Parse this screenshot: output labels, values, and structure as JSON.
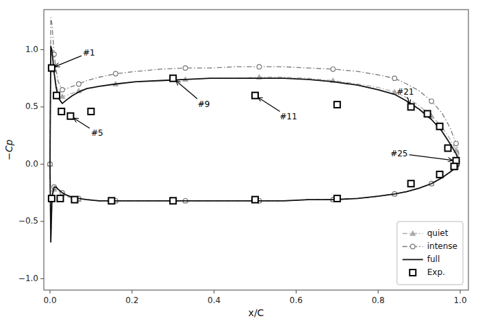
{
  "chart_data": {
    "type": "line",
    "xlabel": "x/C",
    "ylabel": "−Cp",
    "xlim": [
      -0.015,
      1.02
    ],
    "ylim": [
      -1.1,
      1.35
    ],
    "xticks": [
      {
        "value": 0,
        "label": "0.0"
      },
      0.2,
      0.4,
      0.6,
      0.8,
      {
        "value": 1,
        "label": "1.0"
      }
    ],
    "yticks": [
      {
        "value": -1,
        "label": "−1.0"
      },
      {
        "value": -0.5,
        "label": "−0.5"
      },
      {
        "value": 0,
        "label": "0.0"
      },
      0.5,
      {
        "value": 1,
        "label": "1.0"
      }
    ],
    "grid": false,
    "legend": "lower right",
    "series": [
      {
        "name": "quiet",
        "type": "line",
        "color": "#aaaaaa",
        "marker": "triangle",
        "line_style": "dashdot",
        "x": [
          0.0,
          0.002,
          0.005,
          0.01,
          0.015,
          0.02,
          0.03,
          0.04,
          0.055,
          0.07,
          0.09,
          0.12,
          0.16,
          0.21,
          0.27,
          0.33,
          0.39,
          0.45,
          0.51,
          0.57,
          0.63,
          0.69,
          0.75,
          0.8,
          0.84,
          0.87,
          0.9,
          0.93,
          0.955,
          0.975,
          0.99,
          0.998
        ],
        "values": [
          0.0,
          1.03,
          1.0,
          0.82,
          0.7,
          0.63,
          0.59,
          0.6,
          0.62,
          0.64,
          0.66,
          0.68,
          0.7,
          0.72,
          0.73,
          0.74,
          0.75,
          0.75,
          0.76,
          0.76,
          0.75,
          0.73,
          0.7,
          0.67,
          0.63,
          0.58,
          0.51,
          0.42,
          0.33,
          0.22,
          0.12,
          0.05
        ]
      },
      {
        "name": "quiet",
        "type": "line",
        "color": "#aaaaaa",
        "marker": "triangle",
        "line_style": "dashdot",
        "x": [
          0.0,
          0.002,
          0.005,
          0.01,
          0.015,
          0.02,
          0.03,
          0.04,
          0.055,
          0.07,
          0.09,
          0.12,
          0.16,
          0.21,
          0.27,
          0.33,
          0.39,
          0.45,
          0.51,
          0.57,
          0.63,
          0.69,
          0.75,
          0.8,
          0.84,
          0.87,
          0.9,
          0.93,
          0.955,
          0.975,
          0.99,
          0.998
        ],
        "values": [
          0.0,
          -0.65,
          -0.3,
          -0.22,
          -0.22,
          -0.23,
          -0.26,
          -0.28,
          -0.3,
          -0.31,
          -0.31,
          -0.32,
          -0.32,
          -0.32,
          -0.32,
          -0.32,
          -0.32,
          -0.32,
          -0.32,
          -0.32,
          -0.31,
          -0.31,
          -0.3,
          -0.28,
          -0.26,
          -0.24,
          -0.21,
          -0.17,
          -0.12,
          -0.07,
          -0.03,
          -0.01
        ]
      },
      {
        "name": "intense",
        "type": "line",
        "color": "#777777",
        "marker": "open-circle",
        "line_style": "dashdot",
        "x": [
          0.0,
          0.002,
          0.005,
          0.01,
          0.015,
          0.02,
          0.03,
          0.04,
          0.055,
          0.07,
          0.09,
          0.12,
          0.16,
          0.21,
          0.27,
          0.33,
          0.39,
          0.45,
          0.51,
          0.57,
          0.63,
          0.69,
          0.75,
          0.8,
          0.84,
          0.87,
          0.9,
          0.93,
          0.955,
          0.975,
          0.99,
          0.998
        ],
        "values": [
          0.0,
          1.28,
          1.22,
          0.96,
          0.82,
          0.72,
          0.65,
          0.66,
          0.68,
          0.7,
          0.73,
          0.76,
          0.79,
          0.81,
          0.83,
          0.84,
          0.84,
          0.85,
          0.85,
          0.85,
          0.84,
          0.83,
          0.81,
          0.78,
          0.75,
          0.7,
          0.64,
          0.55,
          0.45,
          0.32,
          0.18,
          0.07
        ]
      },
      {
        "name": "intense",
        "type": "line",
        "color": "#777777",
        "marker": "open-circle",
        "line_style": "dashdot",
        "x": [
          0.0,
          0.002,
          0.005,
          0.01,
          0.015,
          0.02,
          0.03,
          0.04,
          0.055,
          0.07,
          0.09,
          0.12,
          0.16,
          0.21,
          0.27,
          0.33,
          0.39,
          0.45,
          0.51,
          0.57,
          0.63,
          0.69,
          0.75,
          0.8,
          0.84,
          0.87,
          0.9,
          0.93,
          0.955,
          0.975,
          0.99,
          0.998
        ],
        "values": [
          0.0,
          -0.68,
          -0.28,
          -0.2,
          -0.2,
          -0.22,
          -0.25,
          -0.27,
          -0.29,
          -0.3,
          -0.31,
          -0.32,
          -0.32,
          -0.32,
          -0.32,
          -0.32,
          -0.32,
          -0.32,
          -0.32,
          -0.32,
          -0.31,
          -0.31,
          -0.3,
          -0.28,
          -0.26,
          -0.24,
          -0.21,
          -0.17,
          -0.12,
          -0.07,
          -0.03,
          -0.01
        ]
      },
      {
        "name": "full",
        "type": "line",
        "color": "#111111",
        "marker": "none",
        "line_style": "solid",
        "x": [
          0.0,
          0.002,
          0.005,
          0.01,
          0.015,
          0.02,
          0.03,
          0.04,
          0.055,
          0.07,
          0.09,
          0.12,
          0.16,
          0.21,
          0.27,
          0.33,
          0.39,
          0.45,
          0.51,
          0.57,
          0.63,
          0.69,
          0.75,
          0.8,
          0.84,
          0.87,
          0.9,
          0.93,
          0.955,
          0.975,
          0.99,
          0.998
        ],
        "values": [
          0.0,
          1.03,
          0.99,
          0.8,
          0.67,
          0.58,
          0.53,
          0.56,
          0.6,
          0.63,
          0.66,
          0.68,
          0.7,
          0.72,
          0.73,
          0.74,
          0.75,
          0.75,
          0.75,
          0.75,
          0.74,
          0.72,
          0.69,
          0.65,
          0.61,
          0.55,
          0.48,
          0.39,
          0.29,
          0.18,
          0.09,
          0.02
        ]
      },
      {
        "name": "full",
        "type": "line",
        "color": "#111111",
        "marker": "none",
        "line_style": "solid",
        "x": [
          0.0,
          0.002,
          0.005,
          0.01,
          0.015,
          0.02,
          0.03,
          0.04,
          0.055,
          0.07,
          0.09,
          0.12,
          0.16,
          0.21,
          0.27,
          0.33,
          0.39,
          0.45,
          0.51,
          0.57,
          0.63,
          0.69,
          0.75,
          0.8,
          0.84,
          0.87,
          0.9,
          0.93,
          0.955,
          0.975,
          0.99,
          0.998
        ],
        "values": [
          0.0,
          -0.68,
          -0.28,
          -0.2,
          -0.2,
          -0.22,
          -0.25,
          -0.27,
          -0.29,
          -0.3,
          -0.31,
          -0.32,
          -0.32,
          -0.32,
          -0.32,
          -0.32,
          -0.32,
          -0.32,
          -0.32,
          -0.32,
          -0.31,
          -0.31,
          -0.3,
          -0.28,
          -0.26,
          -0.24,
          -0.21,
          -0.17,
          -0.12,
          -0.07,
          -0.03,
          -0.01
        ]
      },
      {
        "name": "Exp.",
        "type": "scatter",
        "color": "black",
        "marker": "open-square",
        "line_style": "none",
        "x": [
          0.004,
          0.016,
          0.028,
          0.05,
          0.1,
          0.3,
          0.5,
          0.7,
          0.88,
          0.92,
          0.95,
          0.97,
          0.99
        ],
        "values": [
          0.84,
          0.6,
          0.46,
          0.42,
          0.46,
          0.75,
          0.6,
          0.52,
          0.5,
          0.44,
          0.33,
          0.14,
          0.03
        ]
      },
      {
        "name": "Exp.",
        "type": "scatter",
        "color": "black",
        "marker": "open-square",
        "line_style": "none",
        "x": [
          0.004,
          0.025,
          0.06,
          0.15,
          0.3,
          0.5,
          0.7,
          0.88,
          0.95,
          0.985
        ],
        "values": [
          -0.3,
          -0.3,
          -0.31,
          -0.32,
          -0.32,
          -0.31,
          -0.3,
          -0.17,
          -0.09,
          -0.02
        ]
      }
    ],
    "annotations": [
      {
        "text": "#1",
        "x": 0.004,
        "y": 0.84,
        "text_x": 0.08,
        "text_y": 0.97
      },
      {
        "text": "#5",
        "x": 0.05,
        "y": 0.42,
        "text_x": 0.1,
        "text_y": 0.27
      },
      {
        "text": "#9",
        "x": 0.3,
        "y": 0.75,
        "text_x": 0.36,
        "text_y": 0.52
      },
      {
        "text": "#11",
        "x": 0.5,
        "y": 0.6,
        "text_x": 0.56,
        "text_y": 0.41
      },
      {
        "text": "#21",
        "x": 0.88,
        "y": 0.5,
        "text_x": 0.845,
        "text_y": 0.63
      },
      {
        "text": "#25",
        "x": 0.99,
        "y": 0.03,
        "text_x": 0.83,
        "text_y": 0.09
      }
    ]
  }
}
